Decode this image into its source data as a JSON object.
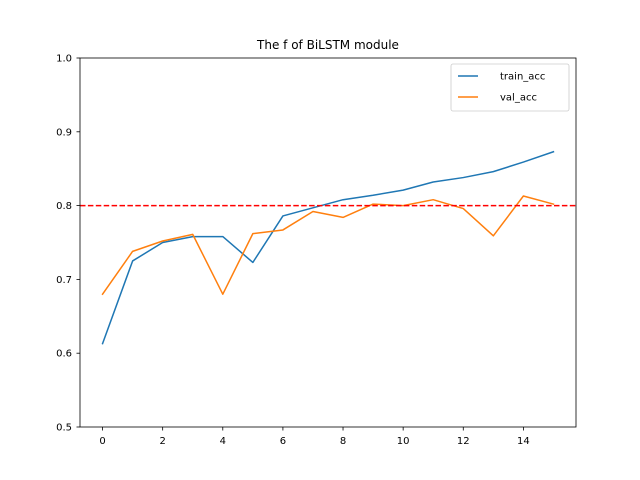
{
  "chart_data": {
    "type": "line",
    "title": "The f of BiLSTM module",
    "xlabel": "",
    "ylabel": "",
    "x": [
      0,
      1,
      2,
      3,
      4,
      5,
      6,
      7,
      8,
      9,
      10,
      11,
      12,
      13,
      14,
      15
    ],
    "xlim": [
      -0.75,
      15.75
    ],
    "ylim": [
      0.5,
      1.0
    ],
    "xticks": [
      "0",
      "2",
      "4",
      "6",
      "8",
      "10",
      "12",
      "14"
    ],
    "xtick_values": [
      0,
      2,
      4,
      6,
      8,
      10,
      12,
      14
    ],
    "yticks": [
      "0.5",
      "0.6",
      "0.7",
      "0.8",
      "0.9",
      "1.0"
    ],
    "ytick_values": [
      0.5,
      0.6,
      0.7,
      0.8,
      0.9,
      1.0
    ],
    "grid": false,
    "legend": "top-right",
    "series": [
      {
        "name": "train_acc",
        "color": "#1f77b4",
        "values": [
          0.613,
          0.725,
          0.75,
          0.758,
          0.758,
          0.723,
          0.786,
          0.797,
          0.808,
          0.814,
          0.821,
          0.832,
          0.838,
          0.846,
          0.859,
          0.873
        ]
      },
      {
        "name": "val_acc",
        "color": "#ff7f0e",
        "values": [
          0.68,
          0.738,
          0.752,
          0.761,
          0.68,
          0.762,
          0.767,
          0.792,
          0.784,
          0.802,
          0.8,
          0.808,
          0.796,
          0.759,
          0.813,
          0.802
        ]
      }
    ],
    "reference_line": {
      "y": 0.8,
      "color": "#ff0000",
      "style": "dashed"
    }
  }
}
